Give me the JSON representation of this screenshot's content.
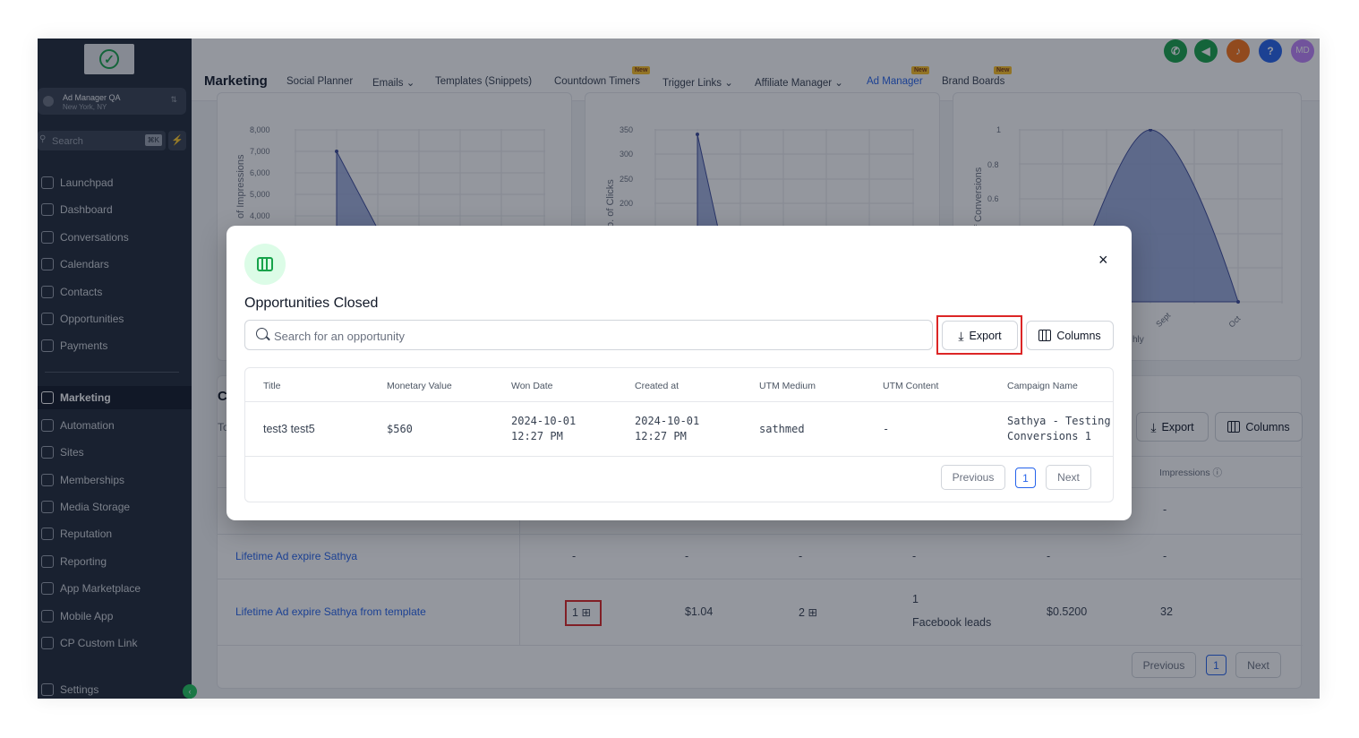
{
  "sidebar": {
    "account_name": "Ad Manager QA",
    "account_location": "New York, NY",
    "search_placeholder": "Search",
    "search_shortcut": "⌘K",
    "items": [
      {
        "label": "Launchpad"
      },
      {
        "label": "Dashboard"
      },
      {
        "label": "Conversations"
      },
      {
        "label": "Calendars"
      },
      {
        "label": "Contacts"
      },
      {
        "label": "Opportunities"
      },
      {
        "label": "Payments"
      },
      {
        "label": "Marketing"
      },
      {
        "label": "Automation"
      },
      {
        "label": "Sites"
      },
      {
        "label": "Memberships"
      },
      {
        "label": "Media Storage"
      },
      {
        "label": "Reputation"
      },
      {
        "label": "Reporting"
      },
      {
        "label": "App Marketplace"
      },
      {
        "label": "Mobile App"
      },
      {
        "label": "CP Custom Link"
      },
      {
        "label": "Settings"
      }
    ],
    "active_item": "Marketing"
  },
  "header": {
    "title": "Marketing",
    "tabs": [
      {
        "label": "Social Planner"
      },
      {
        "label": "Emails ⌄"
      },
      {
        "label": "Templates (Snippets)"
      },
      {
        "label": "Countdown Timers",
        "badge": "New"
      },
      {
        "label": "Trigger Links ⌄"
      },
      {
        "label": "Affiliate Manager ⌄"
      },
      {
        "label": "Ad Manager",
        "badge": "New",
        "active": true
      },
      {
        "label": "Brand Boards",
        "badge": "New"
      }
    ],
    "avatar_initials": "MD",
    "help_glyph": "?"
  },
  "charts": {
    "impressions": {
      "ylabel": "of Impressions",
      "ticks": [
        "8,000",
        "7,000",
        "6,000",
        "5,000",
        "4,000"
      ]
    },
    "clicks": {
      "ylabel": "o. of Clicks",
      "ticks": [
        "350",
        "300",
        "250",
        "200"
      ]
    },
    "conversions": {
      "ylabel": "f Conversions",
      "ticks": [
        "1",
        "0.8",
        "0.6"
      ],
      "xticks": [
        "Sept",
        "Oct"
      ],
      "partial_label": "hly"
    }
  },
  "background": {
    "section_initial": "C",
    "section_sub": "To",
    "export_label": "Export",
    "columns_label": "Columns",
    "impressions_header": "Impressions ⓘ",
    "rows": [
      {
        "name": "",
        "c1": "",
        "c2": "",
        "c3": "",
        "c4": "",
        "c5": "",
        "c6": "-"
      },
      {
        "name": "Lifetime Ad expire Sathya",
        "c1": "-",
        "c2": "-",
        "c3": "-",
        "c4": "-",
        "c5": "-",
        "c6": "-"
      },
      {
        "name": "Lifetime Ad expire Sathya from template",
        "c1": "1",
        "c2": "$1.04",
        "c3": "2",
        "c4a": "1",
        "c4b": "Facebook leads",
        "c5": "$0.5200",
        "c6": "32"
      }
    ],
    "pagination": {
      "prev": "Previous",
      "page": "1",
      "next": "Next"
    }
  },
  "modal": {
    "title": "Opportunities Closed",
    "search_placeholder": "Search for an opportunity",
    "export_label": "Export",
    "columns_label": "Columns",
    "close_glyph": "×",
    "table": {
      "headers": [
        "Title",
        "Monetary Value",
        "Won Date",
        "Created at",
        "UTM Medium",
        "UTM Content",
        "Campaign Name"
      ],
      "rows": [
        {
          "title": "test3 test5",
          "value": "$560",
          "won_date": "2024-10-01",
          "won_time": "12:27 PM",
          "created_date": "2024-10-01",
          "created_time": "12:27 PM",
          "utm_medium": "sathmed",
          "utm_content": "-",
          "campaign_line1": "Sathya - Testing",
          "campaign_line2": "Conversions 1"
        }
      ]
    },
    "pagination": {
      "prev": "Previous",
      "page": "1",
      "next": "Next"
    }
  },
  "colors": {
    "accent": "#2563eb",
    "brand_green": "#16a34a",
    "highlight_red": "#dc2626",
    "sidebar_bg": "#1f2937"
  }
}
